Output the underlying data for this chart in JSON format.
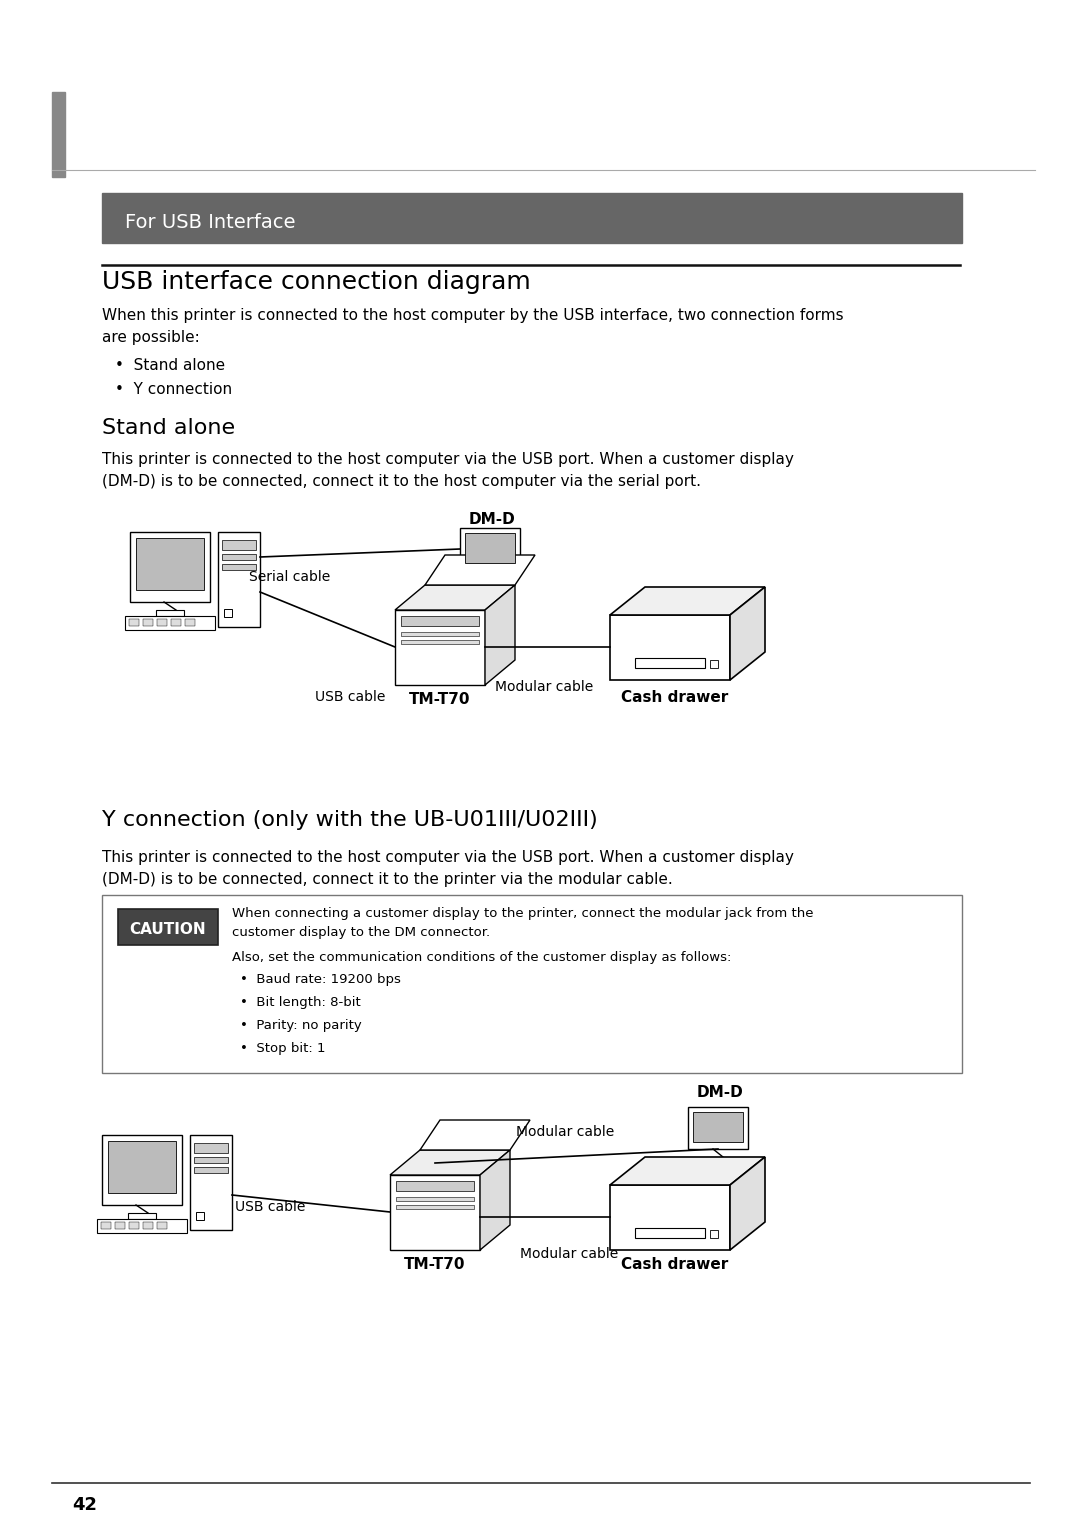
{
  "bg_color": "#ffffff",
  "page_width": 10.8,
  "page_height": 15.27,
  "left_bar_color": "#888888",
  "header_bg": "#666666",
  "header_text": "For USB Interface",
  "header_text_color": "#ffffff",
  "section_title": "USB interface connection diagram",
  "intro_text": "When this printer is connected to the host computer by the USB interface, two connection forms\nare possible:",
  "bullet1": "•  Stand alone",
  "bullet2": "•  Y connection",
  "stand_alone_title": "Stand alone",
  "stand_alone_text": "This printer is connected to the host computer via the USB port. When a customer display\n(DM-D) is to be connected, connect it to the host computer via the serial port.",
  "dmd_label": "DM-D",
  "serial_cable_label": "Serial cable",
  "usb_cable_label": "USB cable",
  "modular_cable_label1": "Modular cable",
  "tmt70_label1": "TM-T70",
  "cash_drawer_label1": "Cash drawer",
  "y_conn_title": "Y connection (only with the UB-U01III/U02III)",
  "y_conn_text": "This printer is connected to the host computer via the USB port. When a customer display\n(DM-D) is to be connected, connect it to the printer via the modular cable.",
  "caution_title": "CAUTION",
  "caution_text1": "When connecting a customer display to the printer, connect the modular jack from the\ncustomer display to the DM connector.",
  "caution_text2": "Also, set the communication conditions of the customer display as follows:",
  "caution_bullets": [
    "•  Baud rate: 19200 bps",
    "•  Bit length: 8-bit",
    "•  Parity: no parity",
    "•  Stop bit: 1"
  ],
  "dmd_label2": "DM-D",
  "modular_cable_label2a": "Modular cable",
  "modular_cable_label2b": "Modular cable",
  "usb_cable_label2": "USB cable",
  "tmt70_label2": "TM-T70",
  "cash_drawer_label2": "Cash drawer",
  "page_num": "42",
  "line_color": "#333333",
  "text_color": "#000000",
  "gray_color": "#888888"
}
